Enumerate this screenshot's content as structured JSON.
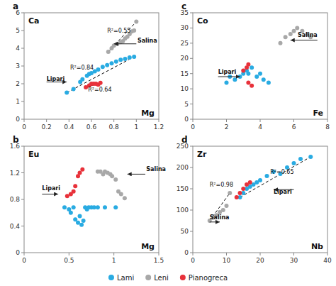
{
  "chart_data": [
    {
      "type": "scatter",
      "title": "Ca",
      "xlabel": "Mg",
      "panel": "a",
      "legend": "bottom",
      "xlim": [
        0.0,
        1.2
      ],
      "ylim": [
        0.0,
        6.0
      ],
      "xticks": [
        0.0,
        0.2,
        0.4,
        0.6,
        0.8,
        1.0,
        1.2
      ],
      "yticks": [
        0.0,
        1.0,
        2.0,
        3.0,
        4.0,
        5.0,
        6.0
      ],
      "series": [
        {
          "name": "Lami",
          "color": "#29ABE2",
          "x": [
            0.38,
            0.44,
            0.5,
            0.52,
            0.56,
            0.58,
            0.6,
            0.63,
            0.66,
            0.7,
            0.74,
            0.78,
            0.82,
            0.86,
            0.9,
            0.94,
            0.98
          ],
          "values": [
            1.5,
            1.7,
            2.1,
            2.25,
            2.45,
            2.55,
            2.6,
            2.7,
            2.8,
            2.95,
            3.05,
            3.15,
            3.25,
            3.35,
            3.4,
            3.48,
            3.52
          ]
        },
        {
          "name": "Leni",
          "color": "#A8A8A8",
          "x": [
            0.75,
            0.78,
            0.8,
            0.83,
            0.86,
            0.88,
            0.9,
            0.92,
            0.94,
            0.96,
            0.98,
            1.0
          ],
          "values": [
            3.8,
            4.0,
            4.15,
            4.25,
            4.35,
            4.4,
            4.55,
            4.65,
            4.8,
            4.95,
            5.0,
            5.5
          ]
        },
        {
          "name": "Pianogreca",
          "color": "#E8313A",
          "x": [
            0.55,
            0.58,
            0.6,
            0.62,
            0.64,
            0.66,
            0.68
          ],
          "values": [
            1.8,
            1.9,
            2.0,
            2.0,
            2.0,
            1.95,
            2.05
          ]
        },
        {
          "type": "line",
          "line_style": "dashed",
          "color": "#000000",
          "x": [
            0.38,
            0.98
          ],
          "values": [
            1.5,
            3.52
          ]
        },
        {
          "type": "line",
          "line_style": "dashed",
          "color": "#000000",
          "x": [
            0.75,
            1.0
          ],
          "values": [
            3.8,
            5.5
          ]
        },
        {
          "type": "line",
          "line_style": "dashed",
          "color": "#000000",
          "x": [
            0.55,
            0.68
          ],
          "values": [
            1.8,
            2.05
          ]
        }
      ],
      "annotations": [
        {
          "text": "R²=0.55",
          "x": 0.74,
          "y": 4.9
        },
        {
          "text": "R²=0.84",
          "x": 0.41,
          "y": 2.8
        },
        {
          "text": "R²=0.64",
          "x": 0.57,
          "y": 1.55
        }
      ],
      "arrows": [
        {
          "text": "Salina",
          "x": 1.01,
          "y": 4.33,
          "tail_x": 1.0,
          "tail_y": 4.25,
          "head_x": 0.8,
          "head_y": 4.25
        },
        {
          "text": "Lipari",
          "x": 0.2,
          "y": 2.18,
          "tail_x": 0.2,
          "tail_y": 2.1,
          "head_x": 0.38,
          "head_y": 2.1
        }
      ]
    },
    {
      "type": "scatter",
      "title": "Eu",
      "xlabel": "Mg",
      "panel": "b",
      "xlim": [
        0.0,
        1.5
      ],
      "ylim": [
        0.0,
        1.6
      ],
      "xticks": [
        0.0,
        0.5,
        1.0,
        1.5
      ],
      "yticks": [
        0.0,
        0.4,
        0.8,
        1.2,
        1.6
      ],
      "series": [
        {
          "name": "Lami",
          "color": "#29ABE2",
          "x": [
            0.45,
            0.5,
            0.52,
            0.55,
            0.57,
            0.6,
            0.62,
            0.64,
            0.66,
            0.68,
            0.7,
            0.72,
            0.75,
            0.78,
            0.82,
            0.9,
            1.02
          ],
          "values": [
            0.68,
            0.65,
            0.6,
            0.68,
            0.5,
            0.45,
            0.55,
            0.42,
            0.48,
            0.68,
            0.65,
            0.68,
            0.68,
            0.68,
            0.68,
            0.68,
            0.68
          ]
        },
        {
          "name": "Leni",
          "color": "#A8A8A8",
          "x": [
            0.82,
            0.85,
            0.88,
            0.9,
            0.93,
            0.96,
            0.98,
            1.02,
            1.05,
            1.08,
            1.12
          ],
          "values": [
            1.22,
            1.22,
            1.18,
            1.22,
            1.2,
            1.18,
            1.15,
            1.1,
            0.92,
            0.88,
            0.82
          ]
        },
        {
          "name": "Pianogreca",
          "color": "#E8313A",
          "x": [
            0.48,
            0.52,
            0.55,
            0.57,
            0.6,
            0.62,
            0.65
          ],
          "values": [
            0.85,
            0.88,
            0.92,
            1.0,
            1.15,
            1.2,
            1.25
          ]
        }
      ],
      "arrows": [
        {
          "text": "Salina",
          "x": 1.36,
          "y": 1.23,
          "tail_x": 1.35,
          "tail_y": 1.18,
          "head_x": 1.15,
          "head_y": 1.18
        },
        {
          "text": "Lipari",
          "x": 0.2,
          "y": 0.94,
          "tail_x": 0.2,
          "tail_y": 0.88,
          "head_x": 0.38,
          "head_y": 0.88
        }
      ]
    },
    {
      "type": "scatter",
      "title": "Co",
      "xlabel": "Fe",
      "panel": "c",
      "xlim": [
        0.0,
        8.0
      ],
      "ylim": [
        0,
        35
      ],
      "xticks": [
        0.0,
        2.0,
        4.0,
        6.0,
        8.0
      ],
      "yticks": [
        0,
        5,
        10,
        15,
        20,
        25,
        30,
        35
      ],
      "series": [
        {
          "name": "Lami",
          "color": "#29ABE2",
          "x": [
            2.0,
            2.2,
            2.5,
            2.8,
            3.0,
            3.2,
            3.3,
            3.5,
            3.8,
            4.0,
            4.2,
            4.5
          ],
          "values": [
            12,
            14,
            13,
            14,
            15,
            16,
            15,
            17,
            14,
            15,
            13,
            12
          ]
        },
        {
          "name": "Leni",
          "color": "#A8A8A8",
          "x": [
            5.2,
            5.5,
            5.8,
            6.0,
            6.2,
            6.5,
            6.8,
            7.0
          ],
          "values": [
            25,
            27,
            28,
            29,
            30,
            29,
            28,
            27
          ]
        },
        {
          "name": "Pianogreca",
          "color": "#E8313A",
          "x": [
            3.0,
            3.2,
            3.3,
            3.3,
            3.5
          ],
          "values": [
            16,
            17,
            18,
            12,
            11
          ]
        }
      ],
      "arrows": [
        {
          "text": "Salina",
          "x": 7.4,
          "y": 27,
          "tail_x": 7.4,
          "tail_y": 26,
          "head_x": 5.8,
          "head_y": 26
        },
        {
          "text": "Lipari",
          "x": 1.5,
          "y": 15,
          "tail_x": 1.5,
          "tail_y": 14,
          "head_x": 2.8,
          "head_y": 14
        }
      ]
    },
    {
      "type": "scatter",
      "title": "Zr",
      "xlabel": "Nb",
      "panel": "d",
      "xlim": [
        0,
        40
      ],
      "ylim": [
        0,
        250
      ],
      "xticks": [
        0,
        10,
        20,
        30,
        40
      ],
      "yticks": [
        0,
        50,
        100,
        150,
        200,
        250
      ],
      "series": [
        {
          "name": "Lami",
          "color": "#29ABE2",
          "x": [
            14,
            15,
            16,
            17,
            18,
            19,
            20,
            22,
            24,
            26,
            28,
            30,
            32,
            35
          ],
          "values": [
            130,
            140,
            150,
            155,
            160,
            165,
            170,
            180,
            190,
            185,
            200,
            210,
            220,
            225
          ]
        },
        {
          "name": "Leni",
          "color": "#A8A8A8",
          "x": [
            5,
            6,
            7,
            8,
            9,
            10,
            11
          ],
          "values": [
            75,
            82,
            88,
            95,
            100,
            110,
            140
          ]
        },
        {
          "name": "Pianogreca",
          "color": "#E8313A",
          "x": [
            13,
            14,
            15,
            16,
            17
          ],
          "values": [
            130,
            140,
            150,
            160,
            165
          ]
        },
        {
          "type": "line",
          "line_style": "dashed",
          "color": "#000000",
          "x": [
            5,
            11
          ],
          "values": [
            75,
            140
          ]
        },
        {
          "type": "line",
          "line_style": "dashed",
          "color": "#000000",
          "x": [
            14,
            35
          ],
          "values": [
            130,
            225
          ]
        }
      ],
      "annotations": [
        {
          "text": "R²=0.98",
          "x": 5,
          "y": 155
        },
        {
          "text": "R²=0.65",
          "x": 23,
          "y": 185
        }
      ],
      "arrows": [
        {
          "text": "Salina",
          "x": 5,
          "y": 78,
          "tail_x": 5,
          "tail_y": 72,
          "head_x": 8,
          "head_y": 72
        },
        {
          "text": "Lipari",
          "x": 24,
          "y": 138,
          "tail_x": 30,
          "tail_y": 148,
          "head_x": 24,
          "head_y": 148
        }
      ]
    }
  ]
}
